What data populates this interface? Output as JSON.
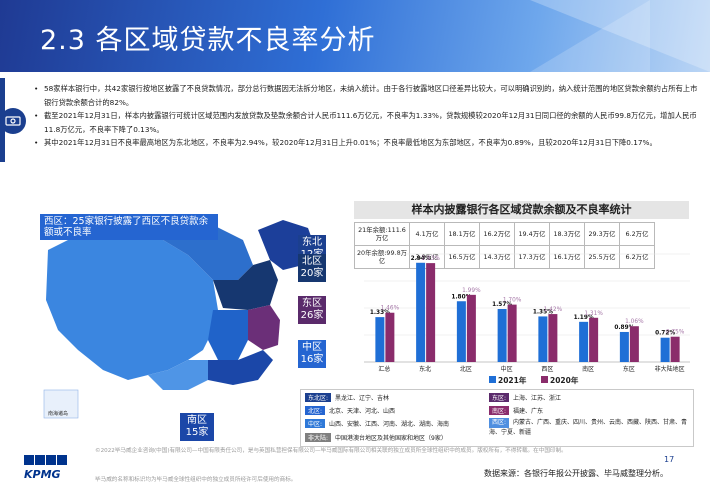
{
  "title": "2.3 各区域贷款不良率分析",
  "bullets": [
    "58家样本银行中，共42家银行按地区披露了不良贷款情况，部分总行数据因无法拆分地区，未纳入统计。由于各行披露地区口径差异比较大，可以明确识别的，纳入统计范围的地区贷款余额约占所有上市银行贷款余额合计的82%。",
    "截至2021年12月31日，样本内披露银行可统计区域范围内发放贷款及垫款余额合计人民币111.6万亿元，不良率为1.33%，贷款规模较2020年12月31日同口径的余额的人民币99.8万亿元，增加人民币11.8万亿元，不良率下降了0.13%。",
    "其中2021年12月31日不良率最高地区为东北地区，不良率为2.94%，较2020年12月31日上升0.01%；不良率最低地区为东部地区，不良率为0.89%，且较2020年12月31日下降0.17%。"
  ],
  "map": {
    "west_label": "西区：25家银行披露了西区不良贷款余额或不良率",
    "regions": [
      {
        "name": "东北",
        "count": "12家"
      },
      {
        "name": "北区",
        "count": "20家"
      },
      {
        "name": "东区",
        "count": "26家"
      },
      {
        "name": "中区",
        "count": "16家"
      },
      {
        "name": "南区",
        "count": "15家"
      }
    ],
    "inset_label": "南海诸岛"
  },
  "chart_data": {
    "type": "bar",
    "title": "样本内披露银行各区域贷款余额及不良率统计",
    "table": {
      "rows": [
        {
          "label": "21年余额:111.6万亿",
          "values": [
            "4.1万亿",
            "18.1万亿",
            "16.2万亿",
            "19.4万亿",
            "18.3万亿",
            "29.3万亿",
            "6.2万亿"
          ]
        },
        {
          "label": "20年余额:99.8万亿",
          "values": [
            "3.9万亿",
            "16.5万亿",
            "14.3万亿",
            "17.3万亿",
            "16.1万亿",
            "25.5万亿",
            "6.2万亿"
          ]
        }
      ]
    },
    "categories": [
      "汇总",
      "东北",
      "北区",
      "中区",
      "西区",
      "南区",
      "东区",
      "非大陆地区"
    ],
    "series": [
      {
        "name": "2021年",
        "values": [
          1.33,
          2.94,
          1.8,
          1.57,
          1.35,
          1.19,
          0.89,
          0.72
        ],
        "labels": [
          "1.33%",
          "2.94%",
          "1.80%",
          "1.57%",
          "1.35%",
          "1.19%",
          "0.89%",
          "0.72%"
        ],
        "color": "#1f6fd6"
      },
      {
        "name": "2020年",
        "values": [
          1.46,
          2.93,
          1.99,
          1.7,
          1.42,
          1.31,
          1.06,
          0.75
        ],
        "labels": [
          "1.46%",
          "2.93%",
          "1.99%",
          "1.70%",
          "1.42%",
          "1.31%",
          "1.06%",
          "0.75%"
        ],
        "color": "#8a2c6b"
      }
    ],
    "ylim": [
      0,
      3.2
    ]
  },
  "legend": {
    "items": [
      {
        "tag": "东北区:",
        "text": "黑龙江、辽宁、吉林",
        "color": "#1b3f8f"
      },
      {
        "tag": "北区:",
        "text": "北京、天津、河北、山西",
        "color": "#2565d1"
      },
      {
        "tag": "中区:",
        "text": "山西、安徽、江西、河南、湖北、湖南、海南",
        "color": "#2f79d8"
      },
      {
        "tag": "非大陆:",
        "text": "中国港澳台地区及其他国家和地区（9家）",
        "color": "#7f7f7f"
      },
      {
        "tag": "东区:",
        "text": "上海、江苏、浙江",
        "color": "#5a2a6b"
      },
      {
        "tag": "南区:",
        "text": "福建、广东",
        "color": "#8a2c6b"
      },
      {
        "tag": "西区:",
        "text": "内蒙古、广西、重庆、四川、贵州、云南、西藏、陕西、甘肃、青海、宁夏、新疆",
        "color": "#4f8fe0"
      }
    ]
  },
  "footer": {
    "copyright": "©2022毕马威企业咨询(中国)有限公司—中国有限责任公司，是与英国私营担保有限公司—毕马威国际有限公司相关联的独立成员所全球性组织中的成员。版权所有，不得转载。在中国印制。",
    "trademark": "毕马威的名称和标识均为毕马威全球性组织中的独立成员所经许可后使用的商标。",
    "page": "17",
    "source": "数据来源：各银行年报公开披露、毕马威整理分析。",
    "logo_text": "KPMG"
  }
}
